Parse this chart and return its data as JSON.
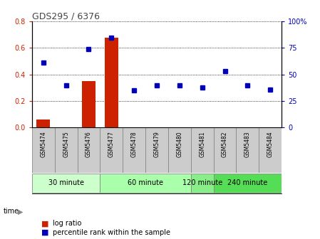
{
  "title": "GDS295 / 6376",
  "samples": [
    "GSM5474",
    "GSM5475",
    "GSM5476",
    "GSM5477",
    "GSM5478",
    "GSM5479",
    "GSM5480",
    "GSM5481",
    "GSM5482",
    "GSM5483",
    "GSM5484"
  ],
  "log_ratio": [
    0.06,
    -0.005,
    0.35,
    0.68,
    -0.005,
    -0.005,
    -0.005,
    -0.005,
    -0.005,
    -0.005,
    -0.005
  ],
  "percentile_rank": [
    61,
    40,
    74,
    85,
    35,
    40,
    40,
    38,
    53,
    40,
    36
  ],
  "group_spans": [
    {
      "start": 0,
      "end": 2,
      "label": "30 minute",
      "color": "#ccffcc"
    },
    {
      "start": 3,
      "end": 6,
      "label": "60 minute",
      "color": "#aaffaa"
    },
    {
      "start": 7,
      "end": 7,
      "label": "120 minute",
      "color": "#88ee88"
    },
    {
      "start": 8,
      "end": 10,
      "label": "240 minute",
      "color": "#55dd55"
    }
  ],
  "ylim_left": [
    0.0,
    0.8
  ],
  "ylim_right": [
    0,
    100
  ],
  "y_ticks_left": [
    0.0,
    0.2,
    0.4,
    0.6,
    0.8
  ],
  "y_ticks_right": [
    0,
    25,
    50,
    75,
    100
  ],
  "bar_color": "#cc2200",
  "dot_color": "#0000bb",
  "title_color": "#444444",
  "left_tick_color": "#cc2200",
  "right_tick_color": "#0000bb",
  "grid_color": "#000000",
  "bg_color": "#ffffff",
  "legend_log": "log ratio",
  "legend_pct": "percentile rank within the sample",
  "sample_box_color": "#cccccc",
  "sample_box_edge": "#888888"
}
